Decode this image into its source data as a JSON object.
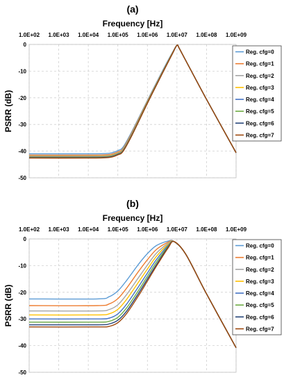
{
  "chart_data": [
    {
      "type": "line",
      "panel_label": "(a)",
      "xlabel": "Frequency [Hz]",
      "ylabel": "PSRR (dB)",
      "x_scale": "log",
      "xlim": [
        100,
        1000000000
      ],
      "ylim": [
        -50,
        0
      ],
      "x_tick_labels": [
        "1.0E+02",
        "1.0E+03",
        "1.0E+04",
        "1.0E+05",
        "1.0E+06",
        "1.0E+07",
        "1.0E+08",
        "1.0E+09"
      ],
      "y_tick_labels": [
        "0",
        "-10",
        "-20",
        "-30",
        "-40",
        "-50"
      ],
      "grid": true,
      "legend_position": "right",
      "x": [
        100,
        10000,
        50000,
        100000,
        150000,
        300000,
        1000000,
        3000000,
        7000000,
        10000000,
        12000000,
        20000000,
        100000000,
        1000000000
      ],
      "series": [
        {
          "name": "Reg. cfg=0",
          "color": "#5b9bd5",
          "values": [
            -41.0,
            -41.0,
            -40.8,
            -39.8,
            -38.5,
            -32.6,
            -21.0,
            -10.6,
            -3.0,
            -0.3,
            -1.5,
            -6.1,
            -20.6,
            -40.6
          ]
        },
        {
          "name": "Reg. cfg=1",
          "color": "#ed7d31",
          "values": [
            -41.5,
            -41.5,
            -41.3,
            -40.3,
            -39.0,
            -33.0,
            -21.3,
            -10.9,
            -3.2,
            -0.3,
            -1.5,
            -6.1,
            -20.6,
            -40.6
          ]
        },
        {
          "name": "Reg. cfg=2",
          "color": "#a5a5a5",
          "values": [
            -41.8,
            -41.8,
            -41.6,
            -40.6,
            -39.3,
            -33.3,
            -21.5,
            -11.0,
            -3.3,
            -0.3,
            -1.5,
            -6.1,
            -20.6,
            -40.6
          ]
        },
        {
          "name": "Reg. cfg=3",
          "color": "#ffc000",
          "values": [
            -42.0,
            -42.0,
            -41.8,
            -40.8,
            -39.5,
            -33.5,
            -21.6,
            -11.1,
            -3.3,
            -0.3,
            -1.5,
            -6.1,
            -20.6,
            -40.6
          ]
        },
        {
          "name": "Reg. cfg=4",
          "color": "#4472c4",
          "values": [
            -42.2,
            -42.2,
            -42.0,
            -41.0,
            -39.7,
            -33.7,
            -21.8,
            -11.2,
            -3.4,
            -0.3,
            -1.5,
            -6.1,
            -20.6,
            -40.6
          ]
        },
        {
          "name": "Reg. cfg=5",
          "color": "#70ad47",
          "values": [
            -42.4,
            -42.4,
            -42.2,
            -41.2,
            -39.9,
            -33.9,
            -21.9,
            -11.3,
            -3.4,
            -0.3,
            -1.5,
            -6.1,
            -20.6,
            -40.6
          ]
        },
        {
          "name": "Reg. cfg=6",
          "color": "#264478",
          "values": [
            -42.5,
            -42.5,
            -42.3,
            -41.3,
            -40.0,
            -34.0,
            -22.0,
            -11.4,
            -3.5,
            -0.3,
            -1.5,
            -6.1,
            -20.6,
            -40.6
          ]
        },
        {
          "name": "Reg. cfg=7",
          "color": "#9e480e",
          "values": [
            -42.6,
            -42.6,
            -42.4,
            -41.4,
            -40.1,
            -34.1,
            -22.1,
            -11.5,
            -3.5,
            -0.3,
            -1.5,
            -6.1,
            -20.6,
            -40.6
          ]
        }
      ]
    },
    {
      "type": "line",
      "panel_label": "(b)",
      "xlabel": "Frequency [Hz]",
      "ylabel": "PSRR (dB)",
      "x_scale": "log",
      "xlim": [
        100,
        1000000000
      ],
      "ylim": [
        -50,
        0
      ],
      "x_tick_labels": [
        "1.0E+02",
        "1.0E+03",
        "1.0E+04",
        "1.0E+05",
        "1.0E+06",
        "1.0E+07",
        "1.0E+08",
        "1.0E+09"
      ],
      "y_tick_labels": [
        "0",
        "-10",
        "-20",
        "-30",
        "-40",
        "-50"
      ],
      "grid": true,
      "legend_position": "right",
      "x": [
        100,
        20000,
        50000,
        100000,
        200000,
        500000,
        1000000,
        2000000,
        5000000,
        8000000,
        20000000,
        100000000,
        1000000000
      ],
      "series": [
        {
          "name": "Reg. cfg=0",
          "color": "#5b9bd5",
          "values": [
            -22.5,
            -22.5,
            -21.7,
            -19.5,
            -15.5,
            -9.5,
            -5.5,
            -2.5,
            -0.8,
            -1.0,
            -5.8,
            -20.6,
            -40.8
          ]
        },
        {
          "name": "Reg. cfg=1",
          "color": "#ed7d31",
          "values": [
            -25.0,
            -25.0,
            -24.4,
            -22.4,
            -18.4,
            -12.2,
            -7.8,
            -4.0,
            -1.2,
            -1.0,
            -5.8,
            -20.6,
            -40.8
          ]
        },
        {
          "name": "Reg. cfg=2",
          "color": "#a5a5a5",
          "values": [
            -27.0,
            -27.0,
            -26.5,
            -24.7,
            -20.8,
            -14.5,
            -9.8,
            -5.4,
            -1.6,
            -1.0,
            -5.8,
            -20.6,
            -40.8
          ]
        },
        {
          "name": "Reg. cfg=3",
          "color": "#ffc000",
          "values": [
            -28.5,
            -28.5,
            -28.1,
            -26.4,
            -22.6,
            -16.2,
            -11.3,
            -6.6,
            -2.0,
            -1.0,
            -5.8,
            -20.6,
            -40.8
          ]
        },
        {
          "name": "Reg. cfg=4",
          "color": "#4472c4",
          "values": [
            -30.0,
            -30.0,
            -29.7,
            -28.1,
            -24.4,
            -17.9,
            -12.8,
            -7.8,
            -2.4,
            -1.0,
            -5.8,
            -20.6,
            -40.8
          ]
        },
        {
          "name": "Reg. cfg=5",
          "color": "#70ad47",
          "values": [
            -31.2,
            -31.2,
            -30.9,
            -29.4,
            -25.8,
            -19.3,
            -14.0,
            -8.8,
            -2.8,
            -1.0,
            -5.8,
            -20.6,
            -40.8
          ]
        },
        {
          "name": "Reg. cfg=6",
          "color": "#264478",
          "values": [
            -32.2,
            -32.2,
            -31.9,
            -30.5,
            -27.0,
            -20.4,
            -15.0,
            -9.7,
            -3.1,
            -1.0,
            -5.8,
            -20.6,
            -40.8
          ]
        },
        {
          "name": "Reg. cfg=7",
          "color": "#9e480e",
          "values": [
            -33.0,
            -33.0,
            -32.8,
            -31.4,
            -27.9,
            -21.3,
            -15.8,
            -10.3,
            -3.4,
            -1.0,
            -5.8,
            -20.6,
            -40.8
          ]
        }
      ]
    }
  ]
}
